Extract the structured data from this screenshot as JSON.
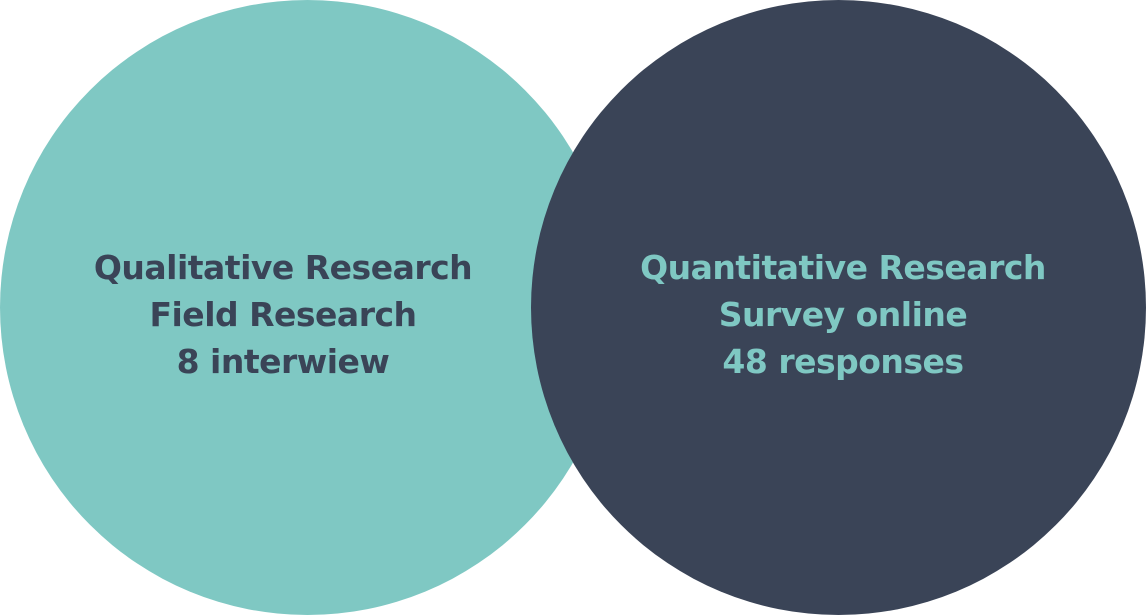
{
  "colors": {
    "teal": "#7fc8c3",
    "navy": "#3a4457"
  },
  "left_circle": {
    "title": "Qualitative Research",
    "method": "Field Research",
    "count": "8 interwiew"
  },
  "right_circle": {
    "title": "Quantitative Research",
    "method": "Survey online",
    "count": "48 responses"
  }
}
